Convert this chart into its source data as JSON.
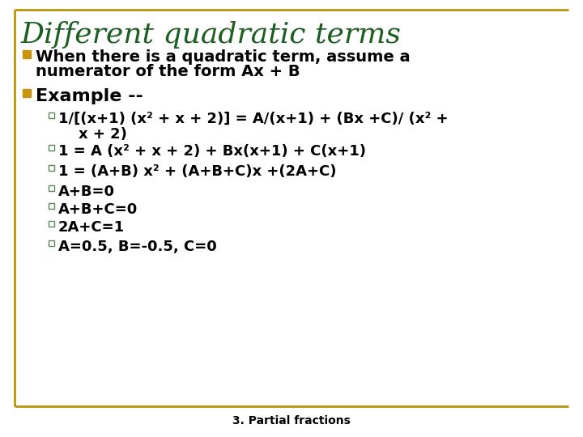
{
  "title": "Different quadratic terms",
  "title_color": "#1B5E20",
  "title_fontsize": 26,
  "background_color": "#FFFFFF",
  "border_color": "#B8960C",
  "bullet_color": "#C8960C",
  "sub_bullet_color": "#5A8A5A",
  "bullet1_line1": "When there is a quadratic term, assume a",
  "bullet1_line2": "numerator of the form Ax + B",
  "bullet2": "Example --",
  "sub_bullets": [
    "1/[(x+1) (x² + x + 2)] = A/(x+1) + (Bx +C)/ (x² +",
    "    x + 2)",
    "1 = A (x² + x + 2) + Bx(x+1) + C(x+1)",
    "1 = (A+B) x² + (A+B+C)x +(2A+C)",
    "A+B=0",
    "A+B+C=0",
    "2A+C=1",
    "A=0.5, B=-0.5, C=0"
  ],
  "sub_bullet_has_marker": [
    true,
    false,
    true,
    true,
    true,
    true,
    true,
    true
  ],
  "footer": "3. Partial fractions",
  "footer_fontsize": 10,
  "text_fontsize": 13,
  "bullet_fontsize": 14
}
